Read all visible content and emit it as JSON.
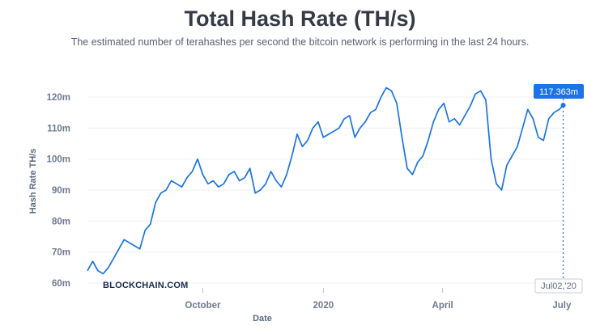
{
  "header": {
    "title": "Total Hash Rate (TH/s)",
    "subtitle": "The estimated number of terahashes per second the bitcoin network is performing in the last 24 hours."
  },
  "brand": "BLOCKCHAIN.COM",
  "tooltip": {
    "value": "117.363m",
    "date": "Jul02,'20"
  },
  "colors": {
    "line": "#1a73e8",
    "tooltip_bg": "#1a73e8",
    "grid": "#eef0f4"
  },
  "chart_data": {
    "type": "line",
    "title": "Total Hash Rate (TH/s)",
    "subtitle": "The estimated number of terahashes per second the bitcoin network is performing in the last 24 hours.",
    "xlabel": "Date",
    "ylabel": "Hash Rate TH/s",
    "ylim": [
      60,
      126
    ],
    "xlim": [
      "2019-07-05",
      "2020-07-06"
    ],
    "grid": true,
    "ytick_values": [
      60,
      70,
      80,
      90,
      100,
      110,
      120
    ],
    "ytick_labels": [
      "60m",
      "70m",
      "80m",
      "90m",
      "100m",
      "110m",
      "120m"
    ],
    "xticks": [
      {
        "date": "2019-10-01",
        "label": "October"
      },
      {
        "date": "2020-01-01",
        "label": "2020"
      },
      {
        "date": "2020-04-01",
        "label": "April"
      },
      {
        "date": "2020-07-01",
        "label": "July"
      }
    ],
    "series": [
      {
        "x": [
          "2019-07-05",
          "2019-07-09",
          "2019-07-13",
          "2019-07-17",
          "2019-07-21",
          "2019-07-25",
          "2019-07-29",
          "2019-08-02",
          "2019-08-06",
          "2019-08-10",
          "2019-08-14",
          "2019-08-18",
          "2019-08-22",
          "2019-08-26",
          "2019-08-30",
          "2019-09-03",
          "2019-09-07",
          "2019-09-11",
          "2019-09-15",
          "2019-09-19",
          "2019-09-23",
          "2019-09-27",
          "2019-10-01",
          "2019-10-05",
          "2019-10-09",
          "2019-10-13",
          "2019-10-17",
          "2019-10-21",
          "2019-10-25",
          "2019-10-29",
          "2019-11-02",
          "2019-11-06",
          "2019-11-10",
          "2019-11-14",
          "2019-11-18",
          "2019-11-22",
          "2019-11-26",
          "2019-11-30",
          "2019-12-04",
          "2019-12-08",
          "2019-12-12",
          "2019-12-16",
          "2019-12-20",
          "2019-12-24",
          "2019-12-28",
          "2020-01-01",
          "2020-01-05",
          "2020-01-09",
          "2020-01-13",
          "2020-01-17",
          "2020-01-21",
          "2020-01-25",
          "2020-01-29",
          "2020-02-02",
          "2020-02-06",
          "2020-02-10",
          "2020-02-14",
          "2020-02-18",
          "2020-02-22",
          "2020-02-26",
          "2020-03-01",
          "2020-03-05",
          "2020-03-09",
          "2020-03-13",
          "2020-03-17",
          "2020-03-21",
          "2020-03-25",
          "2020-03-29",
          "2020-04-02",
          "2020-04-06",
          "2020-04-10",
          "2020-04-14",
          "2020-04-18",
          "2020-04-22",
          "2020-04-26",
          "2020-04-30",
          "2020-05-04",
          "2020-05-08",
          "2020-05-12",
          "2020-05-16",
          "2020-05-20",
          "2020-05-24",
          "2020-05-28",
          "2020-06-01",
          "2020-06-05",
          "2020-06-09",
          "2020-06-13",
          "2020-06-17",
          "2020-06-21",
          "2020-06-25",
          "2020-06-29",
          "2020-07-02"
        ],
        "y": [
          64,
          67,
          64,
          63,
          65,
          68,
          71,
          74,
          73,
          72,
          71,
          77,
          79,
          86,
          89,
          90,
          93,
          92,
          91,
          94,
          96,
          100,
          95,
          92,
          93,
          91,
          92,
          95,
          96,
          93,
          94,
          97,
          89,
          90,
          92,
          96,
          93,
          91,
          95,
          101,
          108,
          104,
          106,
          110,
          112,
          107,
          108,
          109,
          110,
          113,
          114,
          107,
          110,
          112,
          115,
          116,
          120,
          123,
          122,
          118,
          107,
          97,
          95,
          99,
          101,
          106,
          112,
          116,
          118,
          112,
          113,
          111,
          114,
          117,
          121,
          122,
          119,
          100,
          92,
          90,
          98,
          101,
          104,
          110,
          116,
          113,
          107,
          106,
          113,
          115,
          116,
          117.363
        ]
      }
    ]
  }
}
